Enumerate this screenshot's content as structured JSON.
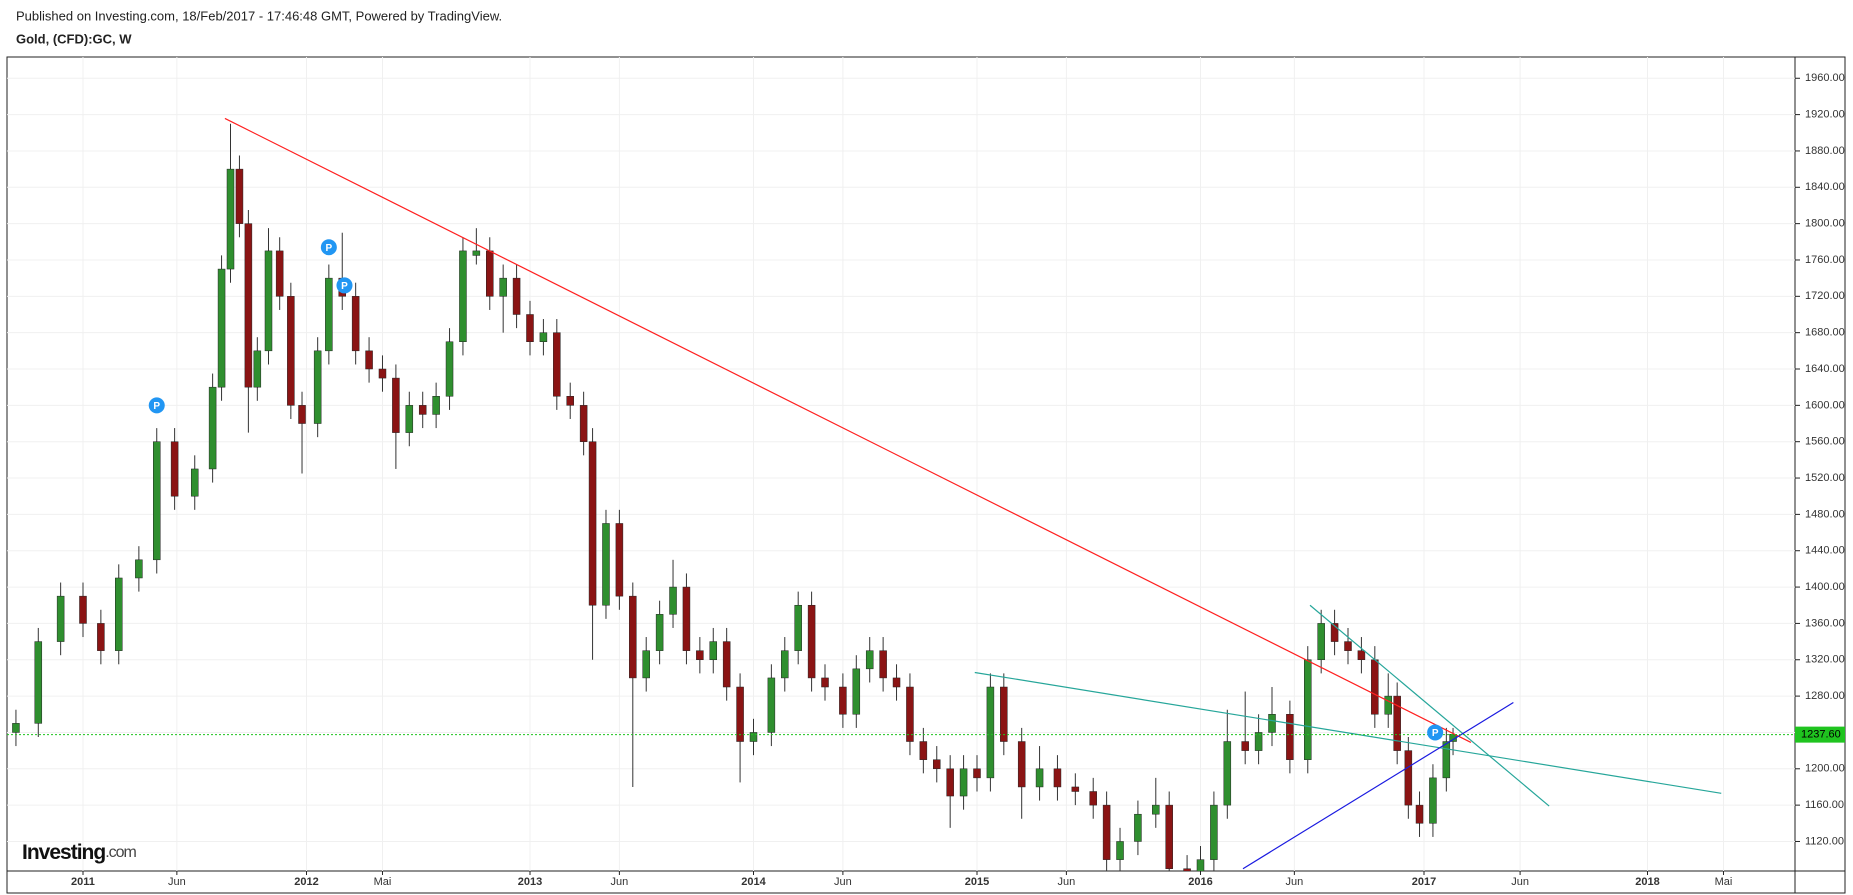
{
  "header": {
    "published": "Published on Investing.com, 18/Feb/2017 - 17:46:48 GMT, Powered by TradingView.",
    "symbol": "Gold, (CFD):GC, W"
  },
  "chart_data": {
    "type": "candlestick",
    "up_color": "#2f8f2f",
    "down_color": "#8b1414",
    "wick_color": "#333333",
    "grid": true,
    "xlim": [
      2010.66,
      2018.66
    ],
    "xticks": [
      {
        "value": 2011,
        "label": "2011"
      },
      {
        "value": 2011.42,
        "label": "Jun"
      },
      {
        "value": 2012,
        "label": "2012"
      },
      {
        "value": 2012.34,
        "label": "Mai"
      },
      {
        "value": 2013,
        "label": "2013"
      },
      {
        "value": 2013.4,
        "label": "Jun"
      },
      {
        "value": 2014,
        "label": "2014"
      },
      {
        "value": 2014.4,
        "label": "Jun"
      },
      {
        "value": 2015,
        "label": "2015"
      },
      {
        "value": 2015.4,
        "label": "Jun"
      },
      {
        "value": 2016,
        "label": "2016"
      },
      {
        "value": 2016.42,
        "label": "Jun"
      },
      {
        "value": 2017,
        "label": "2017"
      },
      {
        "value": 2017.43,
        "label": "Jun"
      },
      {
        "value": 2018,
        "label": "2018"
      },
      {
        "value": 2018.34,
        "label": "Mai"
      }
    ],
    "ylim": [
      1087.5,
      1983.4
    ],
    "yticks": [
      {
        "value": 1120,
        "label": "1120.00"
      },
      {
        "value": 1160,
        "label": "1160.00"
      },
      {
        "value": 1200,
        "label": "1200.00"
      },
      {
        "value": 1240,
        "label": "1240.00"
      },
      {
        "value": 1280,
        "label": "1280.00"
      },
      {
        "value": 1320,
        "label": "1320.00"
      },
      {
        "value": 1360,
        "label": "1360.00"
      },
      {
        "value": 1400,
        "label": "1400.00"
      },
      {
        "value": 1440,
        "label": "1440.00"
      },
      {
        "value": 1480,
        "label": "1480.00"
      },
      {
        "value": 1520,
        "label": "1520.00"
      },
      {
        "value": 1560,
        "label": "1560.00"
      },
      {
        "value": 1600,
        "label": "1600.00"
      },
      {
        "value": 1640,
        "label": "1640.00"
      },
      {
        "value": 1680,
        "label": "1680.00"
      },
      {
        "value": 1720,
        "label": "1720.00"
      },
      {
        "value": 1760,
        "label": "1760.00"
      },
      {
        "value": 1800,
        "label": "1800.00"
      },
      {
        "value": 1840,
        "label": "1840.00"
      },
      {
        "value": 1880,
        "label": "1880.00"
      },
      {
        "value": 1920,
        "label": "1920.00"
      },
      {
        "value": 1960,
        "label": "1960.00"
      }
    ],
    "x": [
      2010.7,
      2010.8,
      2010.9,
      2011.0,
      2011.08,
      2011.16,
      2011.25,
      2011.33,
      2011.41,
      2011.5,
      2011.58,
      2011.62,
      2011.66,
      2011.7,
      2011.74,
      2011.78,
      2011.83,
      2011.88,
      2011.93,
      2011.98,
      2012.05,
      2012.1,
      2012.16,
      2012.22,
      2012.28,
      2012.34,
      2012.4,
      2012.46,
      2012.52,
      2012.58,
      2012.64,
      2012.7,
      2012.76,
      2012.82,
      2012.88,
      2012.94,
      2013.0,
      2013.06,
      2013.12,
      2013.18,
      2013.24,
      2013.28,
      2013.34,
      2013.4,
      2013.46,
      2013.52,
      2013.58,
      2013.64,
      2013.7,
      2013.76,
      2013.82,
      2013.88,
      2013.94,
      2014.0,
      2014.08,
      2014.14,
      2014.2,
      2014.26,
      2014.32,
      2014.4,
      2014.46,
      2014.52,
      2014.58,
      2014.64,
      2014.7,
      2014.76,
      2014.82,
      2014.88,
      2014.94,
      2015.0,
      2015.06,
      2015.12,
      2015.2,
      2015.28,
      2015.36,
      2015.44,
      2015.52,
      2015.58,
      2015.64,
      2015.72,
      2015.8,
      2015.86,
      2015.94,
      2016.0,
      2016.06,
      2016.12,
      2016.2,
      2016.26,
      2016.32,
      2016.4,
      2016.48,
      2016.54,
      2016.6,
      2016.66,
      2016.72,
      2016.78,
      2016.84,
      2016.88,
      2016.93,
      2016.98,
      2017.04,
      2017.1,
      2017.13
    ],
    "open": [
      1240,
      1250,
      1340,
      1390,
      1360,
      1330,
      1410,
      1430,
      1560,
      1500,
      1530,
      1620,
      1750,
      1860,
      1800,
      1620,
      1660,
      1770,
      1720,
      1600,
      1580,
      1660,
      1740,
      1720,
      1660,
      1640,
      1630,
      1570,
      1600,
      1590,
      1610,
      1670,
      1765,
      1770,
      1720,
      1740,
      1700,
      1670,
      1680,
      1610,
      1600,
      1560,
      1380,
      1470,
      1390,
      1300,
      1330,
      1370,
      1400,
      1330,
      1320,
      1340,
      1290,
      1230,
      1240,
      1300,
      1330,
      1380,
      1300,
      1290,
      1260,
      1310,
      1330,
      1300,
      1290,
      1230,
      1210,
      1200,
      1170,
      1200,
      1190,
      1290,
      1230,
      1180,
      1200,
      1180,
      1175,
      1160,
      1100,
      1120,
      1150,
      1160,
      1090,
      1070,
      1100,
      1160,
      1230,
      1220,
      1240,
      1260,
      1210,
      1320,
      1360,
      1340,
      1330,
      1320,
      1260,
      1280,
      1220,
      1160,
      1140,
      1190,
      1230
    ],
    "high": [
      1265,
      1355,
      1405,
      1405,
      1375,
      1425,
      1445,
      1575,
      1575,
      1545,
      1635,
      1765,
      1910,
      1875,
      1815,
      1675,
      1795,
      1785,
      1735,
      1615,
      1675,
      1755,
      1790,
      1735,
      1675,
      1655,
      1645,
      1615,
      1615,
      1625,
      1685,
      1785,
      1795,
      1785,
      1755,
      1755,
      1715,
      1695,
      1695,
      1625,
      1615,
      1575,
      1485,
      1485,
      1405,
      1345,
      1385,
      1430,
      1415,
      1345,
      1355,
      1355,
      1305,
      1255,
      1315,
      1345,
      1395,
      1395,
      1315,
      1305,
      1325,
      1345,
      1345,
      1315,
      1305,
      1245,
      1225,
      1215,
      1215,
      1215,
      1305,
      1305,
      1245,
      1225,
      1215,
      1195,
      1190,
      1175,
      1135,
      1165,
      1190,
      1175,
      1105,
      1115,
      1175,
      1265,
      1285,
      1260,
      1290,
      1275,
      1335,
      1375,
      1375,
      1355,
      1345,
      1335,
      1305,
      1295,
      1235,
      1175,
      1205,
      1245,
      1245
    ],
    "low": [
      1225,
      1235,
      1325,
      1345,
      1315,
      1315,
      1395,
      1415,
      1485,
      1485,
      1515,
      1605,
      1735,
      1785,
      1570,
      1605,
      1645,
      1705,
      1585,
      1525,
      1565,
      1645,
      1705,
      1645,
      1625,
      1615,
      1530,
      1555,
      1575,
      1575,
      1595,
      1655,
      1755,
      1705,
      1680,
      1685,
      1655,
      1655,
      1595,
      1585,
      1545,
      1320,
      1365,
      1375,
      1180,
      1285,
      1315,
      1355,
      1315,
      1305,
      1305,
      1275,
      1185,
      1215,
      1225,
      1285,
      1315,
      1285,
      1275,
      1245,
      1245,
      1295,
      1285,
      1275,
      1215,
      1195,
      1185,
      1135,
      1155,
      1175,
      1175,
      1215,
      1145,
      1165,
      1165,
      1160,
      1145,
      1085,
      1085,
      1105,
      1135,
      1075,
      1050,
      1055,
      1085,
      1145,
      1205,
      1205,
      1225,
      1195,
      1195,
      1305,
      1325,
      1315,
      1305,
      1245,
      1245,
      1205,
      1145,
      1125,
      1125,
      1175,
      1215
    ],
    "close": [
      1250,
      1340,
      1390,
      1360,
      1330,
      1410,
      1430,
      1560,
      1500,
      1530,
      1620,
      1750,
      1860,
      1800,
      1620,
      1660,
      1770,
      1720,
      1600,
      1580,
      1660,
      1740,
      1720,
      1660,
      1640,
      1630,
      1570,
      1600,
      1590,
      1610,
      1670,
      1770,
      1770,
      1720,
      1740,
      1700,
      1670,
      1680,
      1610,
      1600,
      1560,
      1380,
      1470,
      1390,
      1300,
      1330,
      1370,
      1400,
      1330,
      1320,
      1340,
      1290,
      1230,
      1240,
      1300,
      1330,
      1380,
      1300,
      1290,
      1260,
      1310,
      1330,
      1300,
      1290,
      1230,
      1210,
      1200,
      1170,
      1200,
      1190,
      1290,
      1230,
      1180,
      1200,
      1180,
      1175,
      1160,
      1100,
      1120,
      1150,
      1160,
      1090,
      1070,
      1100,
      1160,
      1230,
      1220,
      1240,
      1260,
      1210,
      1320,
      1360,
      1340,
      1330,
      1320,
      1260,
      1280,
      1220,
      1160,
      1140,
      1190,
      1230,
      1238
    ],
    "last": {
      "value": 1237.6,
      "label": "1237.60",
      "color": "#1fc41f"
    },
    "trendlines": [
      {
        "color": "#ff2020",
        "x": [
          2011.635,
          2017.21
        ],
        "y": [
          1915.8,
          1229
        ]
      },
      {
        "color": "#26a69a",
        "x": [
          2014.99,
          2018.33
        ],
        "y": [
          1306,
          1173
        ]
      },
      {
        "color": "#26a69a",
        "x": [
          2016.49,
          2017.56
        ],
        "y": [
          1380,
          1159
        ]
      },
      {
        "color": "#1a1ae0",
        "x": [
          2016.19,
          2017.4
        ],
        "y": [
          1090,
          1273
        ]
      }
    ],
    "markers": [
      {
        "x": 2011.33,
        "y": 1600,
        "label": "P"
      },
      {
        "x": 2012.1,
        "y": 1774,
        "label": "P"
      },
      {
        "x": 2012.17,
        "y": 1732,
        "label": "P"
      },
      {
        "x": 2017.05,
        "y": 1240,
        "label": "P"
      }
    ],
    "logo": [
      "Investing",
      ".com"
    ]
  }
}
